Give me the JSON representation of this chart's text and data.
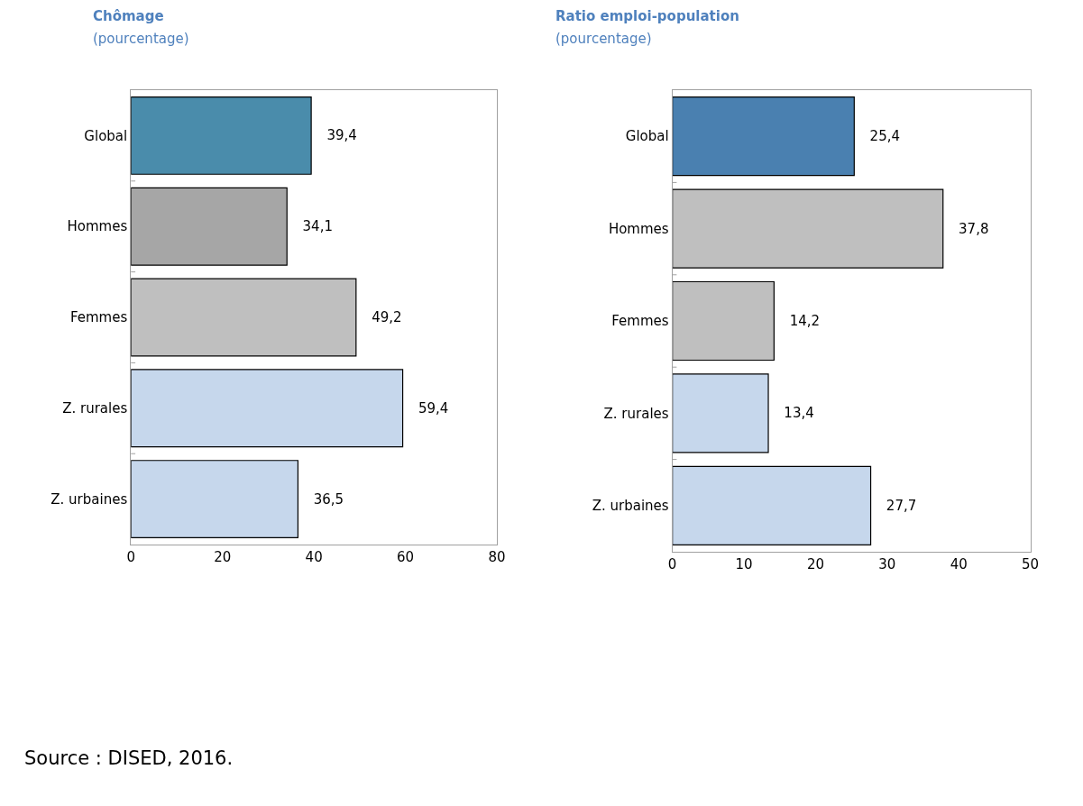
{
  "chart_data": [
    {
      "type": "bar",
      "orientation": "horizontal",
      "title": "Chômage",
      "subtitle": "(pourcentage)",
      "categories": [
        "Global",
        "Hommes",
        "Femmes",
        "Z. rurales",
        "Z. urbaines"
      ],
      "values": [
        39.4,
        34.1,
        49.2,
        59.4,
        36.5
      ],
      "value_labels": [
        "39,4",
        "34,1",
        "49,2",
        "59,4",
        "36,5"
      ],
      "colors": [
        "#4a8cab",
        "#a6a6a6",
        "#bfbfbf",
        "#c6d7ec",
        "#c6d7ec"
      ],
      "xlim": [
        0,
        80
      ],
      "xticks": [
        0,
        20,
        40,
        60,
        80
      ]
    },
    {
      "type": "bar",
      "orientation": "horizontal",
      "title": "Ratio emploi-population",
      "subtitle": "(pourcentage)",
      "categories": [
        "Global",
        "Hommes",
        "Femmes",
        "Z. rurales",
        "Z. urbaines"
      ],
      "values": [
        25.4,
        37.8,
        14.2,
        13.4,
        27.7
      ],
      "value_labels": [
        "25,4",
        "37,8",
        "14,2",
        "13,4",
        "27,7"
      ],
      "colors": [
        "#4a80b0",
        "#bfbfbf",
        "#bfbfbf",
        "#c6d7ec",
        "#c6d7ec"
      ],
      "xlim": [
        0,
        50
      ],
      "xticks": [
        0,
        10,
        20,
        30,
        40,
        50
      ],
      "annotations": [
        "Source : DISED, 2016."
      ]
    }
  ]
}
